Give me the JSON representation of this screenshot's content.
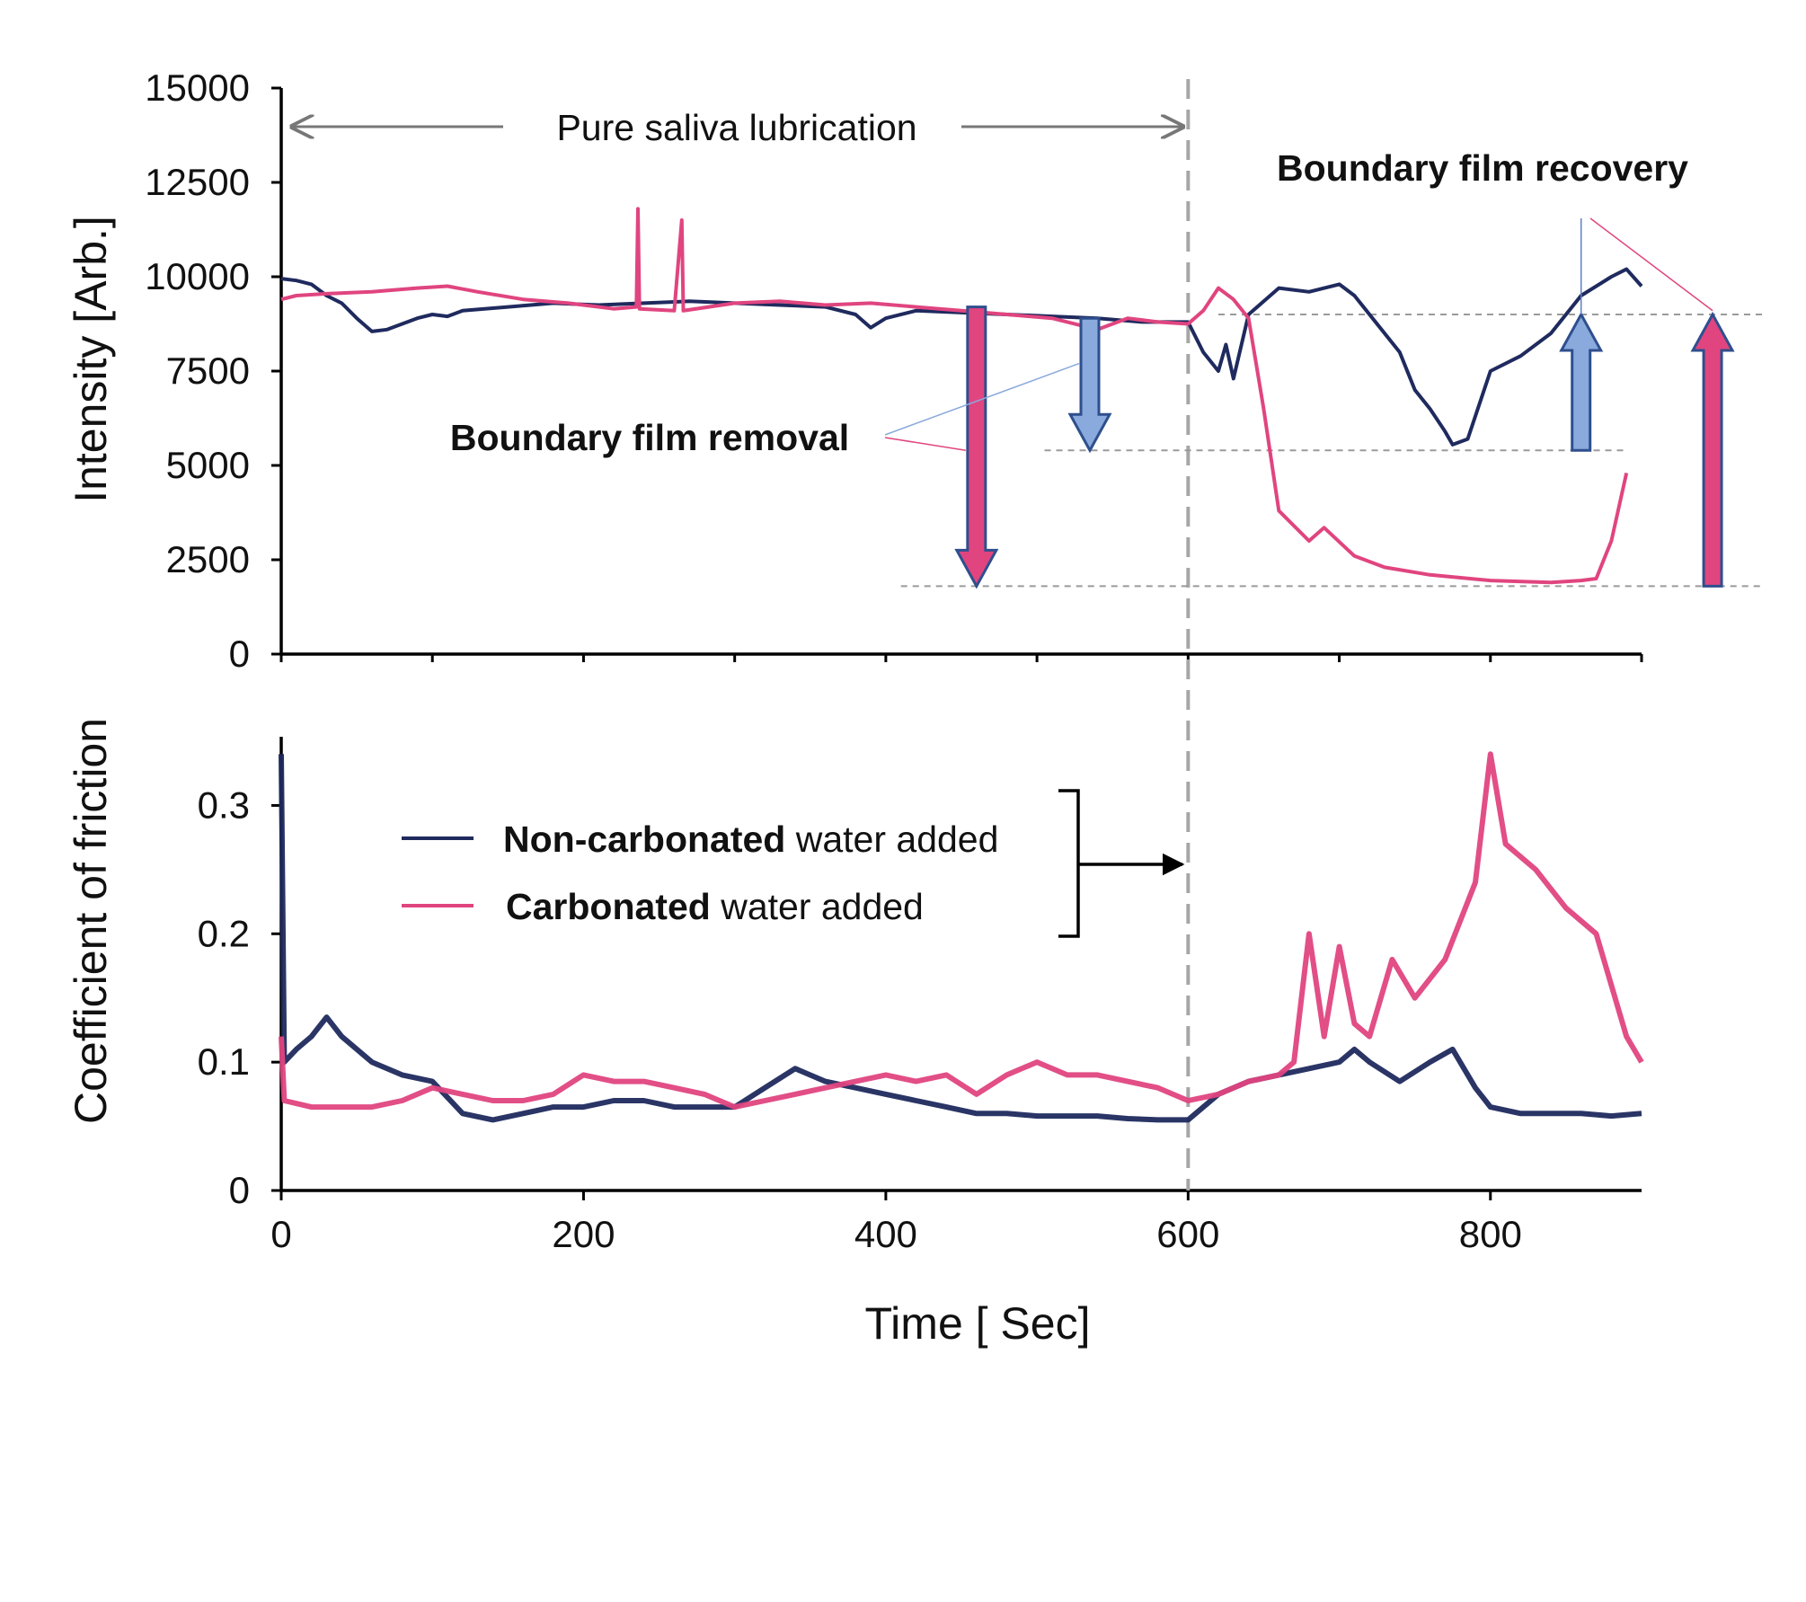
{
  "figure": {
    "chart_data": [
      {
        "type": "line",
        "title": "",
        "xlabel": "",
        "ylabel": "Intensity [Arb.]",
        "xlim": [
          0,
          900
        ],
        "ylim": [
          0,
          15000
        ],
        "grid": false,
        "x_ticks": [
          0,
          100,
          200,
          300,
          400,
          500,
          600,
          700,
          800,
          900
        ],
        "y_ticks": [
          0,
          2500,
          5000,
          7500,
          10000,
          12500,
          15000
        ],
        "y_tick_labels": [
          "0",
          "2500",
          "5000",
          "7500",
          "10000",
          "12500",
          "15000"
        ],
        "series": [
          {
            "name": "Non-carbonated water added",
            "color": "#1f2a5e",
            "points": [
              [
                0,
                9950
              ],
              [
                10,
                9900
              ],
              [
                20,
                9800
              ],
              [
                30,
                9500
              ],
              [
                40,
                9300
              ],
              [
                50,
                8900
              ],
              [
                60,
                8550
              ],
              [
                70,
                8600
              ],
              [
                80,
                8750
              ],
              [
                90,
                8900
              ],
              [
                100,
                9000
              ],
              [
                110,
                8950
              ],
              [
                120,
                9100
              ],
              [
                150,
                9200
              ],
              [
                180,
                9300
              ],
              [
                210,
                9250
              ],
              [
                240,
                9300
              ],
              [
                270,
                9350
              ],
              [
                300,
                9300
              ],
              [
                330,
                9250
              ],
              [
                360,
                9200
              ],
              [
                380,
                9000
              ],
              [
                390,
                8650
              ],
              [
                400,
                8900
              ],
              [
                420,
                9100
              ],
              [
                450,
                9050
              ],
              [
                480,
                9000
              ],
              [
                510,
                8950
              ],
              [
                540,
                8900
              ],
              [
                570,
                8800
              ],
              [
                600,
                8800
              ],
              [
                610,
                8000
              ],
              [
                620,
                7500
              ],
              [
                625,
                8200
              ],
              [
                630,
                7300
              ],
              [
                640,
                9000
              ],
              [
                660,
                9700
              ],
              [
                680,
                9600
              ],
              [
                700,
                9800
              ],
              [
                710,
                9500
              ],
              [
                720,
                9000
              ],
              [
                740,
                8000
              ],
              [
                750,
                7000
              ],
              [
                760,
                6500
              ],
              [
                770,
                5900
              ],
              [
                775,
                5550
              ],
              [
                785,
                5700
              ],
              [
                800,
                7500
              ],
              [
                820,
                7900
              ],
              [
                840,
                8500
              ],
              [
                860,
                9500
              ],
              [
                880,
                10000
              ],
              [
                890,
                10200
              ],
              [
                900,
                9750
              ]
            ]
          },
          {
            "name": "Carbonated water added",
            "color": "#e0457f",
            "points": [
              [
                0,
                9400
              ],
              [
                10,
                9500
              ],
              [
                30,
                9550
              ],
              [
                60,
                9600
              ],
              [
                90,
                9700
              ],
              [
                110,
                9750
              ],
              [
                130,
                9600
              ],
              [
                160,
                9400
              ],
              [
                190,
                9300
              ],
              [
                220,
                9150
              ],
              [
                235,
                9200
              ],
              [
                236,
                11800
              ],
              [
                237,
                9150
              ],
              [
                260,
                9100
              ],
              [
                265,
                11500
              ],
              [
                266,
                9100
              ],
              [
                300,
                9300
              ],
              [
                330,
                9350
              ],
              [
                360,
                9250
              ],
              [
                390,
                9300
              ],
              [
                420,
                9200
              ],
              [
                450,
                9100
              ],
              [
                480,
                9000
              ],
              [
                510,
                8900
              ],
              [
                540,
                8600
              ],
              [
                560,
                8900
              ],
              [
                580,
                8800
              ],
              [
                600,
                8750
              ],
              [
                610,
                9100
              ],
              [
                620,
                9700
              ],
              [
                630,
                9400
              ],
              [
                640,
                8900
              ],
              [
                650,
                6500
              ],
              [
                660,
                3800
              ],
              [
                680,
                3000
              ],
              [
                690,
                3350
              ],
              [
                710,
                2600
              ],
              [
                730,
                2300
              ],
              [
                760,
                2100
              ],
              [
                800,
                1950
              ],
              [
                840,
                1900
              ],
              [
                860,
                1950
              ],
              [
                870,
                2000
              ],
              [
                880,
                3000
              ],
              [
                890,
                4800
              ]
            ]
          }
        ],
        "annotations": {
          "range_label": "Pure saliva lubrication",
          "removal_label": "Boundary film removal",
          "recovery_label": "Boundary film recovery",
          "levels": [
            {
              "value": 9000,
              "x_from": 620,
              "x_to": 980
            },
            {
              "value": 5400,
              "x_from": 505,
              "x_to": 890
            },
            {
              "value": 1800,
              "x_from": 410,
              "x_to": 980
            }
          ],
          "arrows": [
            {
              "direction": "down",
              "x": 460,
              "from": 9200,
              "to": 1800,
              "color": "#e0457f"
            },
            {
              "direction": "down",
              "x": 535,
              "from": 8900,
              "to": 5400,
              "color": "#8aa9dc"
            },
            {
              "direction": "up",
              "x": 860,
              "from": 5400,
              "to": 9000,
              "color": "#8aa9dc"
            },
            {
              "direction": "up",
              "x": 947,
              "from": 1800,
              "to": 9000,
              "color": "#e0457f"
            }
          ]
        }
      },
      {
        "type": "line",
        "title": "",
        "xlabel": "Time [ Sec]",
        "ylabel": "Coefficient of friction",
        "xlim": [
          0,
          900
        ],
        "ylim": [
          0,
          0.35
        ],
        "grid": false,
        "x_ticks": [
          0,
          200,
          400,
          600,
          800
        ],
        "x_tick_labels": [
          "0",
          "200",
          "400",
          "600",
          "800"
        ],
        "y_ticks": [
          0,
          0.1,
          0.2,
          0.3
        ],
        "y_tick_labels": [
          "0",
          "0.1",
          "0.2",
          "0.3"
        ],
        "series": [
          {
            "name": "Non-carbonated water added",
            "color": "#1f2a5e",
            "points": [
              [
                0,
                0.34
              ],
              [
                2,
                0.1
              ],
              [
                10,
                0.11
              ],
              [
                20,
                0.12
              ],
              [
                30,
                0.135
              ],
              [
                40,
                0.12
              ],
              [
                60,
                0.1
              ],
              [
                80,
                0.09
              ],
              [
                100,
                0.085
              ],
              [
                120,
                0.06
              ],
              [
                140,
                0.055
              ],
              [
                160,
                0.06
              ],
              [
                180,
                0.065
              ],
              [
                200,
                0.065
              ],
              [
                220,
                0.07
              ],
              [
                240,
                0.07
              ],
              [
                260,
                0.065
              ],
              [
                280,
                0.065
              ],
              [
                300,
                0.065
              ],
              [
                320,
                0.08
              ],
              [
                340,
                0.095
              ],
              [
                360,
                0.085
              ],
              [
                380,
                0.08
              ],
              [
                400,
                0.075
              ],
              [
                420,
                0.07
              ],
              [
                440,
                0.065
              ],
              [
                460,
                0.06
              ],
              [
                480,
                0.06
              ],
              [
                500,
                0.058
              ],
              [
                520,
                0.058
              ],
              [
                540,
                0.058
              ],
              [
                560,
                0.056
              ],
              [
                580,
                0.055
              ],
              [
                600,
                0.055
              ],
              [
                620,
                0.075
              ],
              [
                640,
                0.085
              ],
              [
                660,
                0.09
              ],
              [
                680,
                0.095
              ],
              [
                700,
                0.1
              ],
              [
                710,
                0.11
              ],
              [
                720,
                0.1
              ],
              [
                740,
                0.085
              ],
              [
                760,
                0.1
              ],
              [
                775,
                0.11
              ],
              [
                790,
                0.08
              ],
              [
                800,
                0.065
              ],
              [
                820,
                0.06
              ],
              [
                840,
                0.06
              ],
              [
                860,
                0.06
              ],
              [
                880,
                0.058
              ],
              [
                900,
                0.06
              ]
            ]
          },
          {
            "name": "Carbonated water added",
            "color": "#e0457f",
            "points": [
              [
                0,
                0.12
              ],
              [
                2,
                0.07
              ],
              [
                20,
                0.065
              ],
              [
                40,
                0.065
              ],
              [
                60,
                0.065
              ],
              [
                80,
                0.07
              ],
              [
                100,
                0.08
              ],
              [
                120,
                0.075
              ],
              [
                140,
                0.07
              ],
              [
                160,
                0.07
              ],
              [
                180,
                0.075
              ],
              [
                200,
                0.09
              ],
              [
                220,
                0.085
              ],
              [
                240,
                0.085
              ],
              [
                260,
                0.08
              ],
              [
                280,
                0.075
              ],
              [
                300,
                0.065
              ],
              [
                320,
                0.07
              ],
              [
                340,
                0.075
              ],
              [
                360,
                0.08
              ],
              [
                380,
                0.085
              ],
              [
                400,
                0.09
              ],
              [
                420,
                0.085
              ],
              [
                440,
                0.09
              ],
              [
                460,
                0.075
              ],
              [
                480,
                0.09
              ],
              [
                500,
                0.1
              ],
              [
                520,
                0.09
              ],
              [
                540,
                0.09
              ],
              [
                560,
                0.085
              ],
              [
                580,
                0.08
              ],
              [
                600,
                0.07
              ],
              [
                620,
                0.075
              ],
              [
                640,
                0.085
              ],
              [
                660,
                0.09
              ],
              [
                670,
                0.1
              ],
              [
                680,
                0.2
              ],
              [
                690,
                0.12
              ],
              [
                700,
                0.19
              ],
              [
                710,
                0.13
              ],
              [
                720,
                0.12
              ],
              [
                735,
                0.18
              ],
              [
                750,
                0.15
              ],
              [
                770,
                0.18
              ],
              [
                790,
                0.24
              ],
              [
                800,
                0.34
              ],
              [
                810,
                0.27
              ],
              [
                830,
                0.25
              ],
              [
                850,
                0.22
              ],
              [
                870,
                0.2
              ],
              [
                890,
                0.12
              ],
              [
                900,
                0.1
              ]
            ]
          }
        ],
        "legend": {
          "placement": "center",
          "entries": [
            {
              "bold": "Non-carbonated",
              "rest": " water added",
              "color": "#1f2a5e"
            },
            {
              "bold": "Carbonated",
              "rest": " water added",
              "color": "#e0457f"
            }
          ]
        },
        "annotations": {
          "bracket_arrow_to_x": 600
        }
      }
    ],
    "divider_x": 600
  }
}
